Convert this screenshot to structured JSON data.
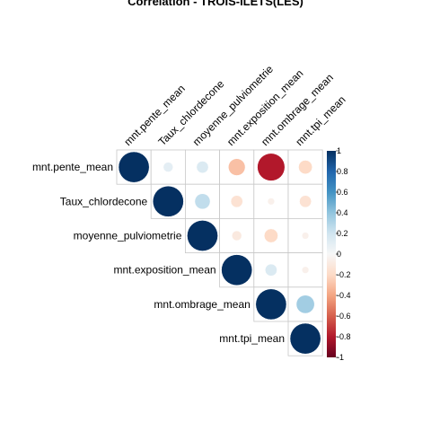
{
  "chart_data": {
    "type": "heatmap",
    "subtype": "corrplot-upper-circle",
    "title": "Correlation - TROIS-ILETS(LES)",
    "variables": [
      "mnt.pente_mean",
      "Taux_chlordecone",
      "moyenne_pulviometrie",
      "mnt.exposition_mean",
      "mnt.ombrage_mean",
      "mnt.tpi_mean"
    ],
    "matrix": [
      [
        1.0,
        0.1,
        0.15,
        -0.3,
        -0.8,
        -0.2
      ],
      [
        0.1,
        1.0,
        0.25,
        -0.15,
        -0.05,
        -0.15
      ],
      [
        0.15,
        0.25,
        1.0,
        -0.1,
        -0.2,
        -0.05
      ],
      [
        -0.3,
        -0.15,
        -0.1,
        1.0,
        0.15,
        -0.05
      ],
      [
        -0.8,
        -0.05,
        -0.2,
        0.15,
        1.0,
        0.35
      ],
      [
        -0.2,
        -0.15,
        -0.05,
        -0.05,
        0.35,
        1.0
      ]
    ],
    "colorbar": {
      "range": [
        -1,
        1
      ],
      "ticks": [
        "1",
        "0.8",
        "0.6",
        "0.4",
        "0.2",
        "0",
        "-0.2",
        "-0.4",
        "-0.6",
        "-0.8",
        "-1"
      ],
      "colors": {
        "negative": "#67001F",
        "zero": "#F7F7F7",
        "positive": "#053061"
      }
    }
  }
}
